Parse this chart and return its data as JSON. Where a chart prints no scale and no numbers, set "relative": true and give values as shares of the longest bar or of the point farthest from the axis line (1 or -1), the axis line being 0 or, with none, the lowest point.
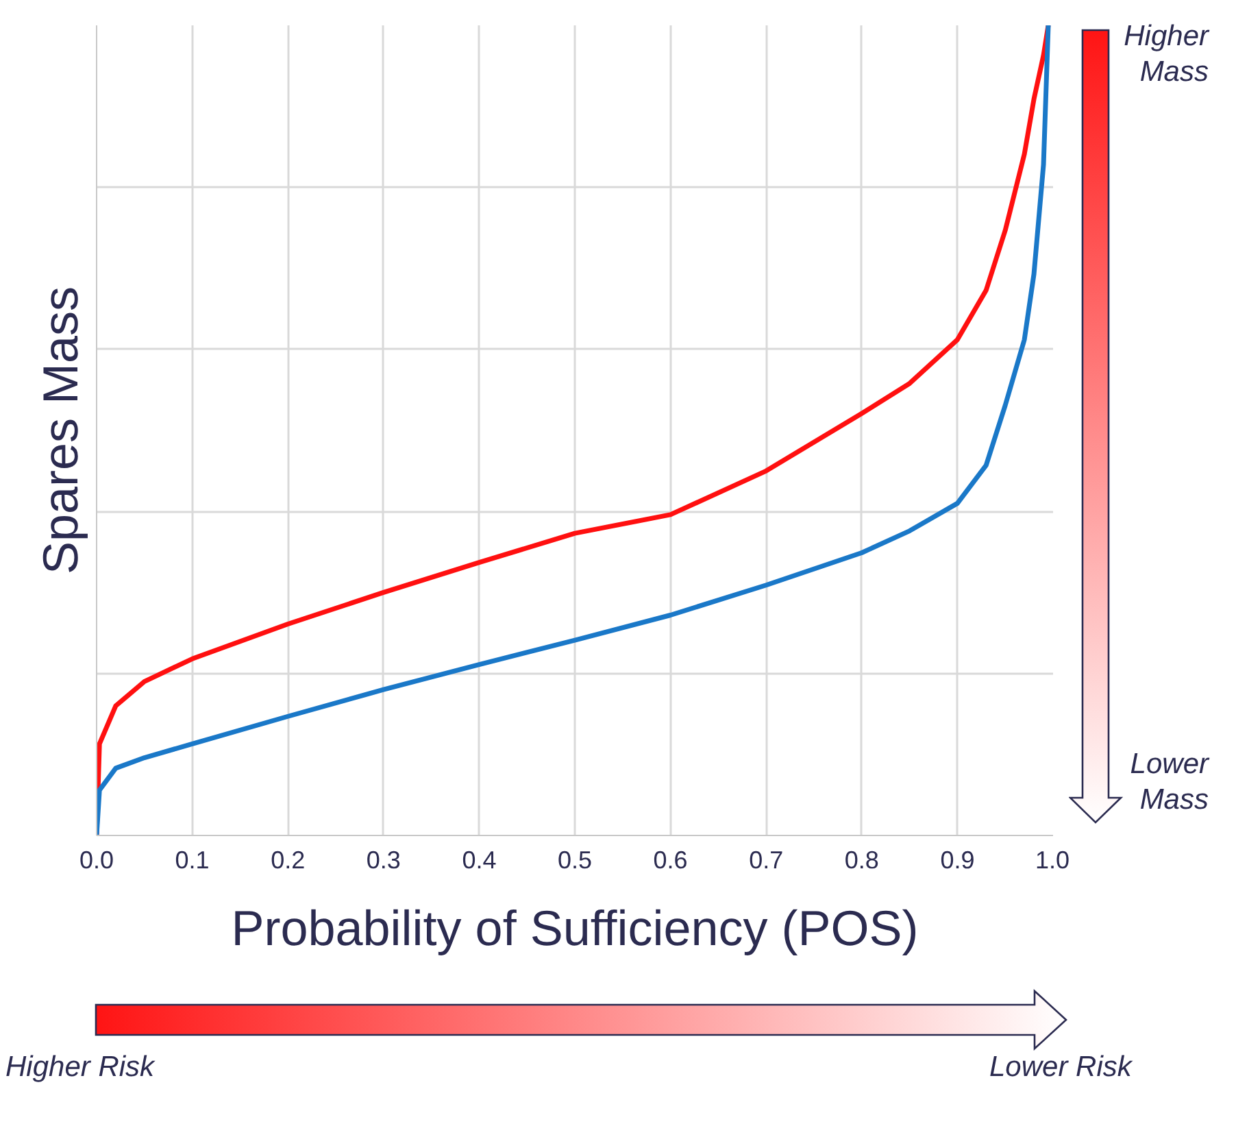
{
  "chart_data": {
    "type": "line",
    "relative": true,
    "xlabel": "Probability of Sufficiency (POS)",
    "ylabel": "Spares Mass",
    "xlim": [
      0,
      1
    ],
    "xticks": [
      {
        "value": 0,
        "label": "0.0"
      },
      0.1,
      0.2,
      0.3,
      0.4,
      0.5,
      0.6,
      0.7,
      0.8,
      0.9,
      {
        "value": 1,
        "label": "1.0"
      }
    ],
    "tick_labels": "x",
    "grid": true,
    "marker": "none",
    "line_style": "solid",
    "x": [
      0,
      0.003,
      0.02,
      0.05,
      0.1,
      0.2,
      0.3,
      0.4,
      0.5,
      0.6,
      0.7,
      0.8,
      0.85,
      0.9,
      0.93,
      0.95,
      0.97,
      0.98,
      0.99,
      0.995
    ],
    "series": [
      {
        "color": "#ff1010",
        "values": [
          0,
          0.113,
          0.16,
          0.19,
          0.218,
          0.261,
          0.3,
          0.337,
          0.373,
          0.396,
          0.45,
          0.521,
          0.558,
          0.612,
          0.673,
          0.747,
          0.841,
          0.909,
          0.963,
          1.0
        ]
      },
      {
        "color": "#1a78c8",
        "values": [
          0,
          0.056,
          0.083,
          0.096,
          0.113,
          0.147,
          0.18,
          0.211,
          0.241,
          0.272,
          0.309,
          0.349,
          0.376,
          0.41,
          0.457,
          0.531,
          0.612,
          0.693,
          0.828,
          1.0
        ]
      }
    ],
    "annotations": [
      "Higher Mass",
      "Lower Mass",
      "Higher Risk",
      "Lower Risk"
    ]
  }
}
